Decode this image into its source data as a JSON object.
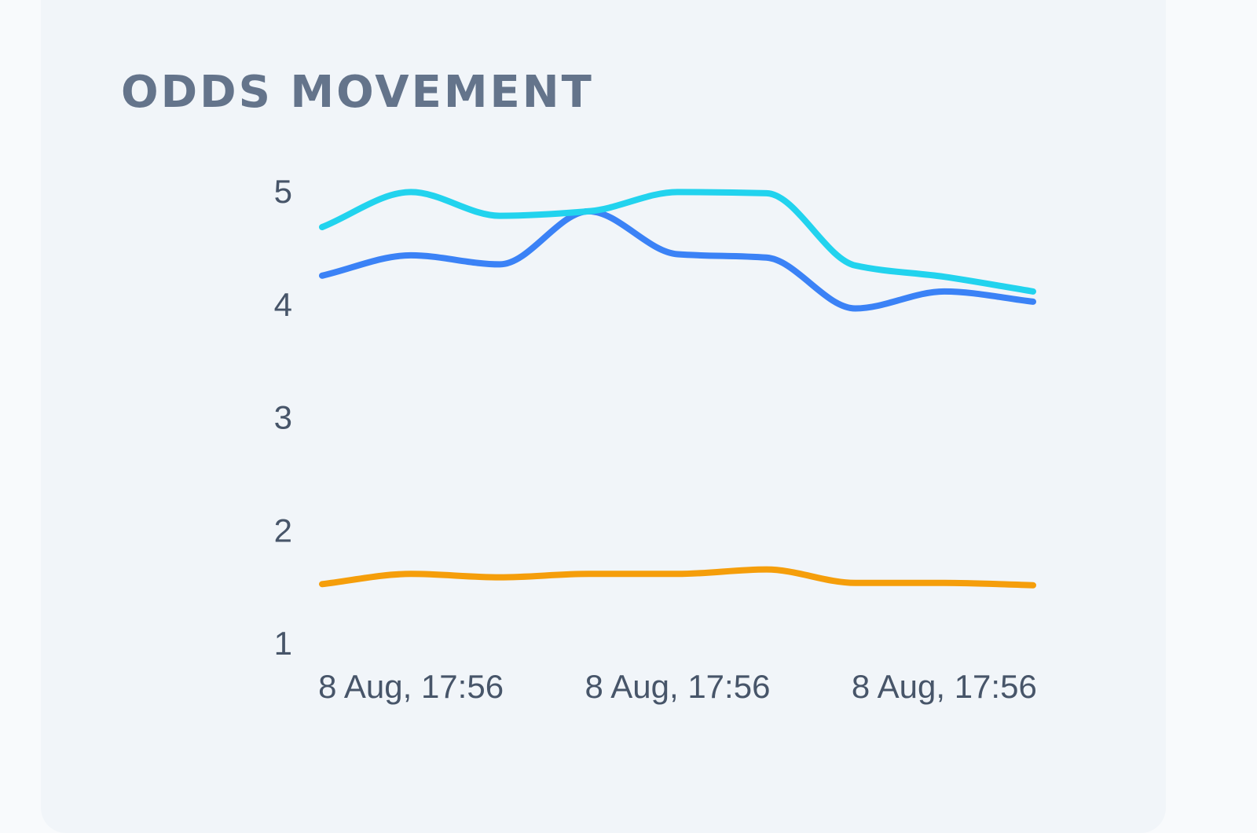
{
  "panel": {
    "title": "ODDS MOVEMENT"
  },
  "chart_data": {
    "type": "line",
    "title": "ODDS MOVEMENT",
    "xlabel": "",
    "ylabel": "",
    "ylim": [
      1,
      5
    ],
    "y_ticks": [
      "1",
      "2",
      "3",
      "4",
      "5"
    ],
    "x_ticks": [
      "8 Aug, 17:56",
      "8 Aug, 17:56",
      "8 Aug, 17:56"
    ],
    "grid": false,
    "legend": "none",
    "points": 9,
    "series": [
      {
        "color": "#22d3ee",
        "values": [
          4.68,
          4.99,
          4.78,
          4.82,
          4.99,
          4.98,
          4.34,
          4.24,
          4.11
        ]
      },
      {
        "color": "#3b82f6",
        "values": [
          4.25,
          4.43,
          4.35,
          4.82,
          4.44,
          4.41,
          3.96,
          4.11,
          4.02
        ]
      },
      {
        "color": "#f59e0b",
        "values": [
          1.52,
          1.61,
          1.58,
          1.61,
          1.61,
          1.65,
          1.53,
          1.53,
          1.51
        ]
      }
    ]
  }
}
